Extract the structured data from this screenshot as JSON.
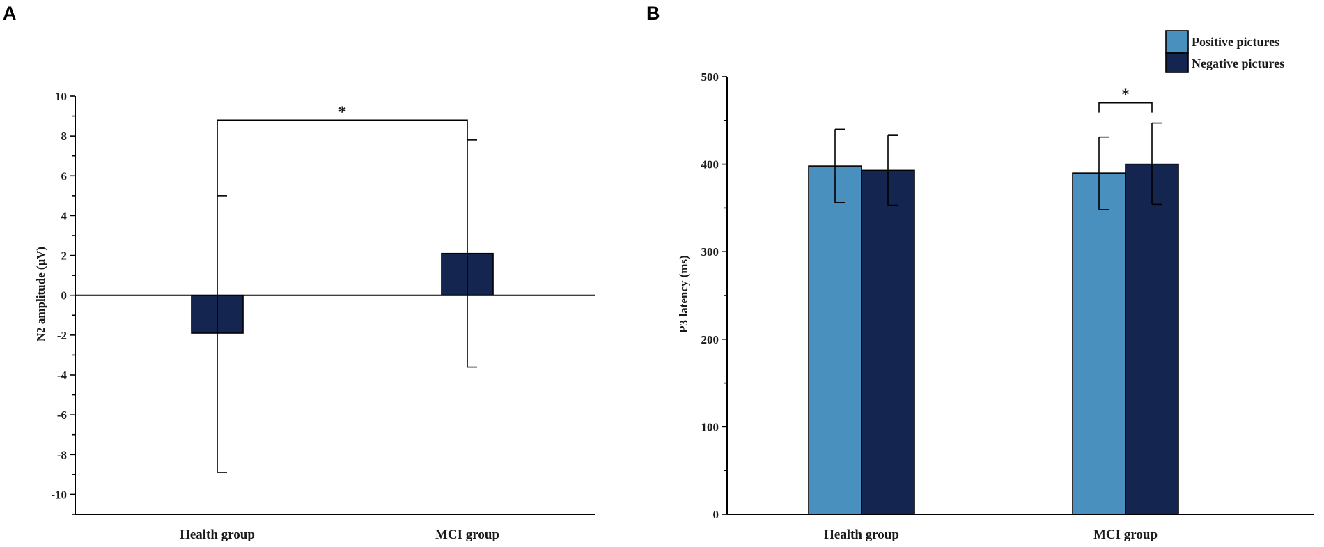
{
  "chart_data": [
    {
      "panel": "A",
      "type": "bar",
      "title": "",
      "xlabel": "",
      "ylabel": "N2 amplitude (μV)",
      "ylim": [
        -11,
        10
      ],
      "yticks": [
        -10,
        -8,
        -6,
        -4,
        -2,
        0,
        2,
        4,
        6,
        8,
        10
      ],
      "categories": [
        "Health group",
        "MCI group"
      ],
      "series": [
        {
          "name": "N2 amplitude",
          "color": "#142550",
          "values": [
            -1.9,
            2.1
          ],
          "err_upper": [
            5.0,
            7.8
          ],
          "err_lower": [
            -8.9,
            -3.6
          ]
        }
      ],
      "significance": [
        {
          "between": [
            "Health group",
            "MCI group"
          ],
          "label": "*",
          "level": 8.8
        }
      ]
    },
    {
      "panel": "B",
      "type": "bar",
      "title": "",
      "xlabel": "",
      "ylabel": "P3 latency (ms)",
      "ylim": [
        0,
        500
      ],
      "yticks": [
        0,
        100,
        200,
        300,
        400,
        500
      ],
      "categories": [
        "Health group",
        "MCI group"
      ],
      "legend_position": "top-right",
      "series": [
        {
          "name": "Positive pictures",
          "color": "#4a90bf",
          "values": [
            398,
            390
          ],
          "err_upper": [
            440,
            431
          ],
          "err_lower": [
            356,
            348
          ]
        },
        {
          "name": "Negative pictures",
          "color": "#142550",
          "values": [
            393,
            400
          ],
          "err_upper": [
            433,
            447
          ],
          "err_lower": [
            353,
            354
          ]
        }
      ],
      "significance": [
        {
          "category": "MCI group",
          "between": [
            "Positive pictures",
            "Negative pictures"
          ],
          "label": "*",
          "level": 470
        }
      ]
    }
  ]
}
